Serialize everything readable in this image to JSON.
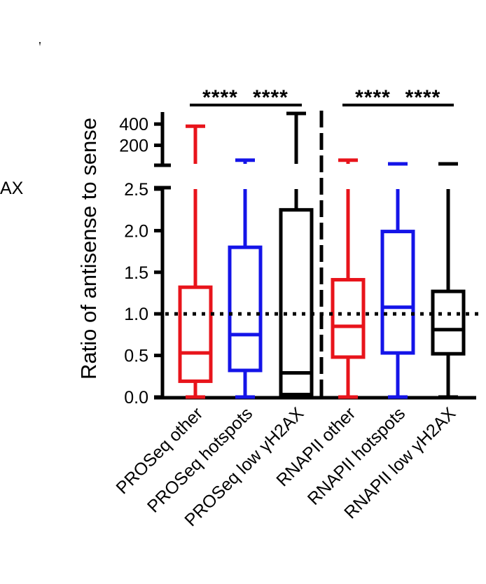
{
  "chart_data": {
    "type": "box",
    "ylabel": "Ratio of antisense to sense",
    "edge_text": "AX",
    "reference_line": 1.0,
    "y_lower_range": [
      0,
      2.5
    ],
    "y_upper_range": [
      25,
      500
    ],
    "y_lower_ticks": [
      "0.0",
      "0.5",
      "1.0",
      "1.5",
      "2.0",
      "2.5"
    ],
    "y_upper_ticks": [
      "200",
      "400"
    ],
    "categories": [
      "PROSeq other",
      "PROSeq hotspots",
      "PROSeq low γH2AX",
      "RNAPII other",
      "RNAPII hotspots",
      "RNAPII low γH2AX"
    ],
    "colors": [
      "#e8141b",
      "#1414e8",
      "#000000",
      "#e8141b",
      "#1414e8",
      "#000000"
    ],
    "boxes": [
      {
        "min": 0.0,
        "q1": 0.19,
        "median": 0.53,
        "q3": 1.32,
        "max": 380
      },
      {
        "min": 0.0,
        "q1": 0.32,
        "median": 0.75,
        "q3": 1.8,
        "max": 60
      },
      {
        "min": 0.0,
        "q1": 0.03,
        "median": 0.29,
        "q3": 2.25,
        "max": 500
      },
      {
        "min": 0.0,
        "q1": 0.48,
        "median": 0.85,
        "q3": 1.41,
        "max": 60
      },
      {
        "min": 0.0,
        "q1": 0.53,
        "median": 1.08,
        "q3": 1.99,
        "max": 25
      },
      {
        "min": 0.0,
        "q1": 0.52,
        "median": 0.81,
        "q3": 1.27,
        "max": 25
      }
    ],
    "significance": [
      {
        "label": "****",
        "from": 0,
        "to": 1
      },
      {
        "label": "****",
        "from": 1,
        "to": 2
      },
      {
        "label": "****",
        "from": 3,
        "to": 4
      },
      {
        "label": "****",
        "from": 4,
        "to": 5
      }
    ],
    "group_divider_after": 2
  }
}
